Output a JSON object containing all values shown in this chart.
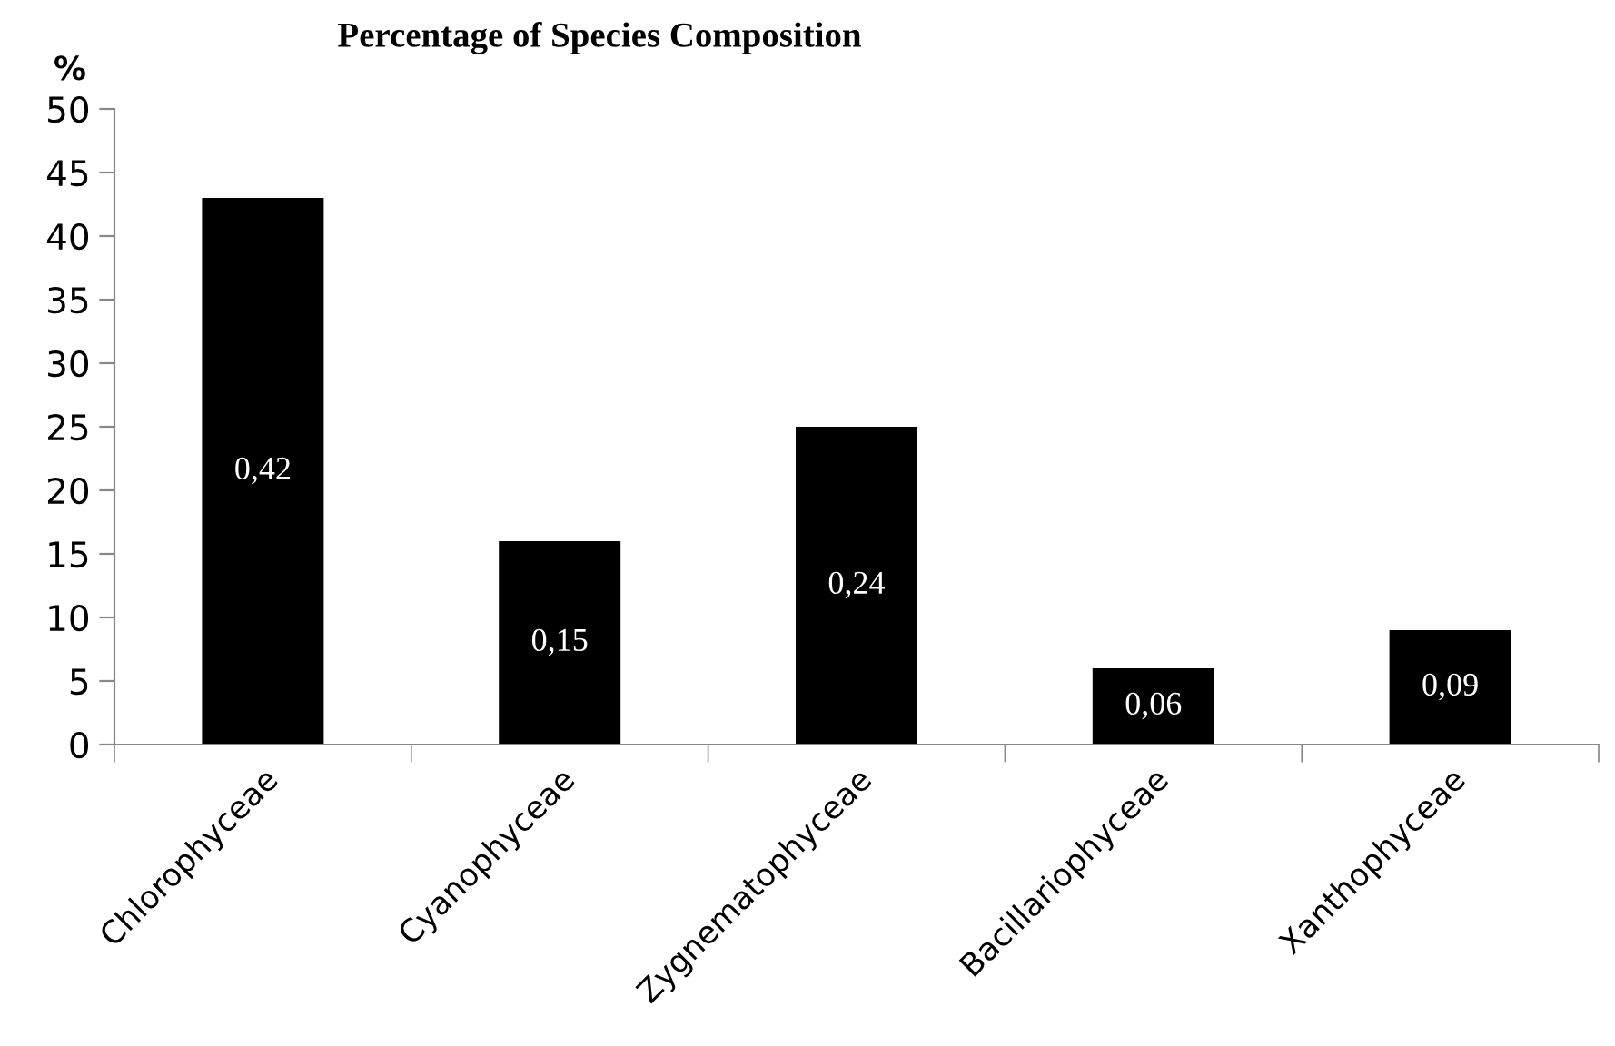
{
  "chart_data": {
    "type": "bar",
    "title": "Percentage of Species Composition",
    "ylabel": "%",
    "categories": [
      "Chlorophyceae",
      "Cyanophyceae",
      "Zygnematophyceae",
      "Bacillariophyceae",
      "Xanthophyceae"
    ],
    "values": [
      43,
      16,
      25,
      6,
      9
    ],
    "color": "#000000",
    "annotations": [
      "0,42",
      "0,15",
      "0,24",
      "0,06",
      "0,09"
    ],
    "ylim": [
      0,
      50
    ],
    "yticks": [
      0,
      5,
      10,
      15,
      20,
      25,
      30,
      35,
      40,
      45,
      50
    ],
    "grid": false,
    "legend": false
  }
}
